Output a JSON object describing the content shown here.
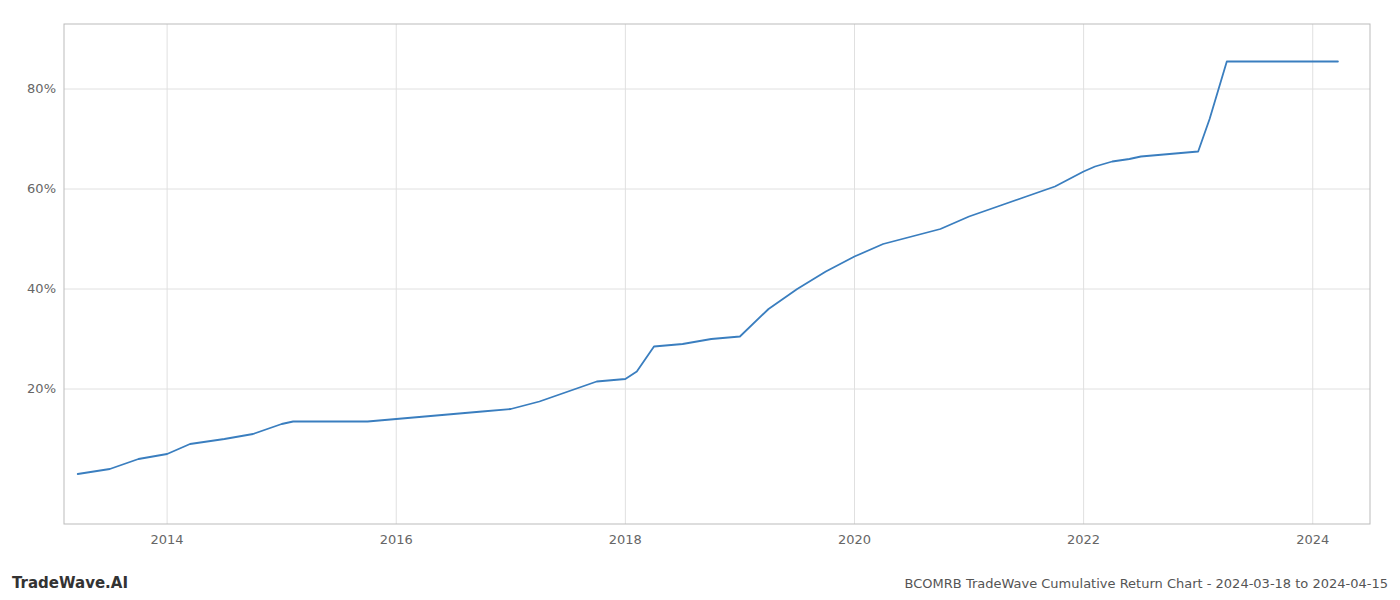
{
  "chart_data": {
    "type": "line",
    "title": "BCOMRB TradeWave Cumulative Return Chart - 2024-03-18 to 2024-04-15",
    "annotations": [
      "TradeWave.AI"
    ],
    "color": "#3a7ebf",
    "grid": true,
    "x": [
      2013.22,
      2013.5,
      2013.75,
      2014.0,
      2014.2,
      2014.5,
      2014.75,
      2015.0,
      2015.1,
      2015.2,
      2015.5,
      2015.75,
      2016.0,
      2016.25,
      2016.5,
      2016.75,
      2017.0,
      2017.25,
      2017.5,
      2017.75,
      2018.0,
      2018.1,
      2018.25,
      2018.5,
      2018.75,
      2019.0,
      2019.25,
      2019.5,
      2019.75,
      2020.0,
      2020.25,
      2020.5,
      2020.75,
      2021.0,
      2021.25,
      2021.5,
      2021.75,
      2022.0,
      2022.1,
      2022.25,
      2022.4,
      2022.5,
      2022.75,
      2023.0,
      2023.1,
      2023.25,
      2023.5,
      2023.75,
      2024.0,
      2024.22
    ],
    "values": [
      0.03,
      0.04,
      0.06,
      0.07,
      0.09,
      0.1,
      0.11,
      0.13,
      0.135,
      0.135,
      0.135,
      0.135,
      0.14,
      0.145,
      0.15,
      0.155,
      0.16,
      0.175,
      0.195,
      0.215,
      0.22,
      0.235,
      0.285,
      0.29,
      0.3,
      0.305,
      0.36,
      0.4,
      0.435,
      0.465,
      0.49,
      0.505,
      0.52,
      0.545,
      0.565,
      0.585,
      0.605,
      0.635,
      0.645,
      0.655,
      0.66,
      0.665,
      0.67,
      0.675,
      0.74,
      0.855,
      0.855,
      0.855,
      0.855,
      0.855
    ],
    "xlim": [
      2013.1,
      2024.5
    ],
    "ylim": [
      -0.07,
      0.93
    ],
    "xticks": [
      2014,
      2016,
      2018,
      2020,
      2022,
      2024
    ],
    "yticks": [
      {
        "value": 0.2,
        "label": "20%"
      },
      {
        "value": 0.4,
        "label": "40%"
      },
      {
        "value": 0.6,
        "label": "60%"
      },
      {
        "value": 0.8,
        "label": "80%"
      }
    ]
  }
}
